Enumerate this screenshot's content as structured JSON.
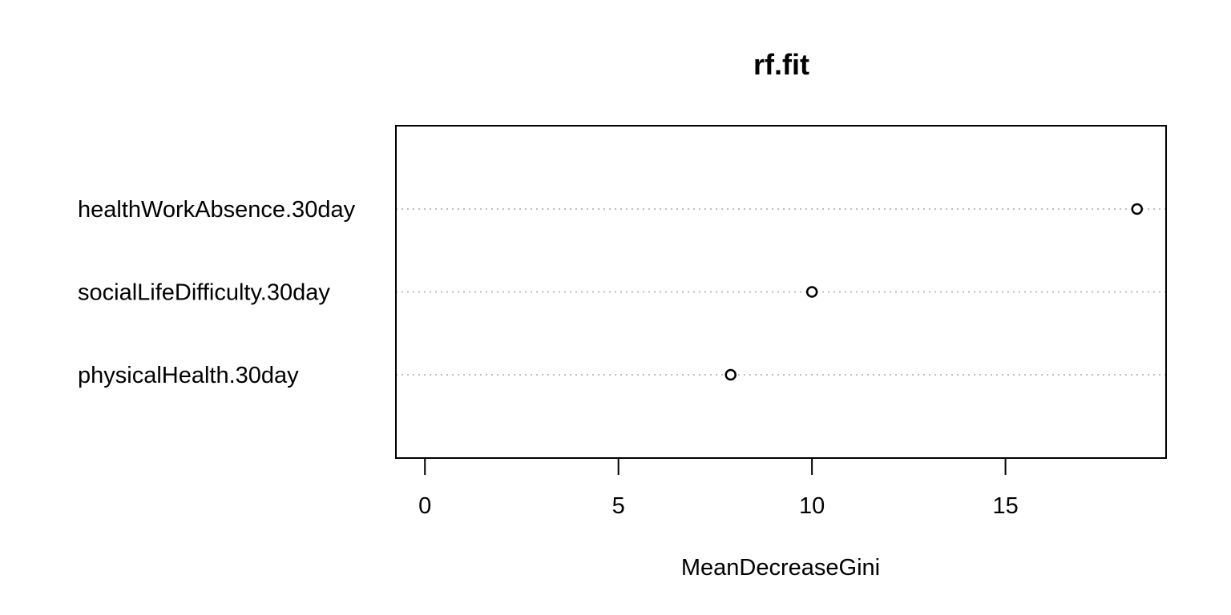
{
  "chart_data": {
    "type": "scatter",
    "title": "rf.fit",
    "xlabel": "MeanDecreaseGini",
    "ylabel": "",
    "categories": [
      "physicalHealth.30day",
      "socialLifeDifficulty.30day",
      "healthWorkAbsence.30day"
    ],
    "values": [
      7.9,
      10.0,
      18.4
    ],
    "xlim": [
      -0.75,
      19.15
    ],
    "xticks": [
      0,
      5,
      10,
      15
    ],
    "xtick_labels": [
      "0",
      "5",
      "10",
      "15"
    ],
    "grid": "dotted horizontal guide per category",
    "legend": "none",
    "colors": {
      "point_stroke": "#000000",
      "guide": "#bdbdbd",
      "frame": "#000000"
    }
  }
}
